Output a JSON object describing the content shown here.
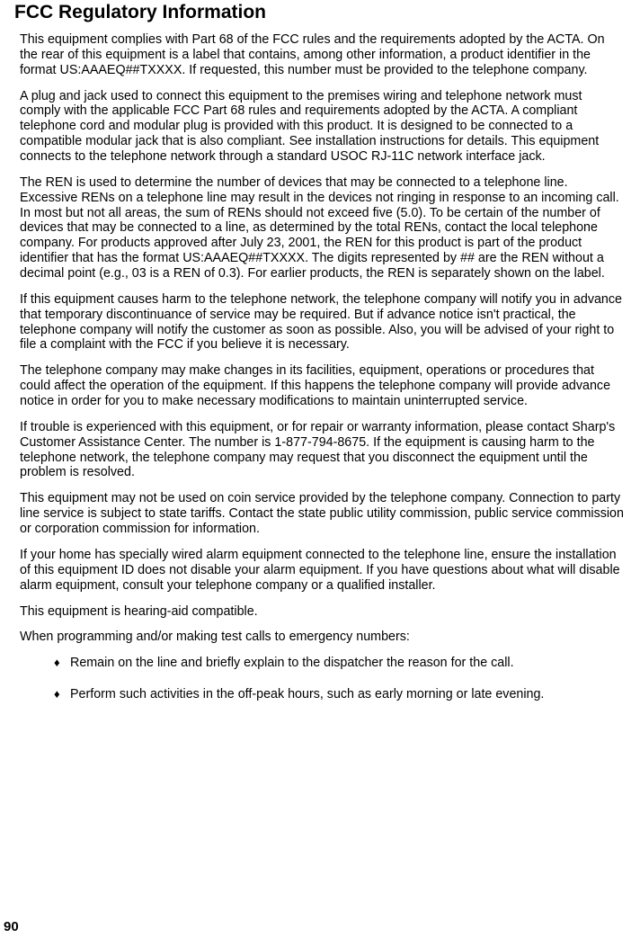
{
  "title": "FCC Regulatory Information",
  "paragraphs": [
    "This equipment complies with Part 68 of the FCC rules and the requirements adopted by the ACTA.  On the rear of this equipment is a label that contains, among other information, a product identifier in the format US:AAAEQ##TXXXX.  If requested, this number must be provided to the telephone company.",
    "A plug and jack used to connect this equipment to the premises wiring and telephone network must comply with the applicable FCC Part 68 rules and requirements adopted by the ACTA.  A compliant telephone cord and modular plug is provided with this product.  It is designed to be connected to a compatible modular jack that is also compliant.  See installation instructions for details. This equipment connects to the telephone network through a standard USOC RJ-11C network interface jack.",
    "The REN is used to determine the number of devices that may be connected to a telephone line. Excessive RENs on a telephone line may result in the devices not ringing in response to an incoming call. In most but not all areas, the sum of RENs should not exceed five (5.0).  To be certain of the number of devices that may be connected to a line, as determined by the total RENs, contact the local telephone company.  For products approved after July 23, 2001, the REN for this product is part of the product identifier that has the format US:AAAEQ##TXXXX.  The digits represented by ## are the REN without a decimal point (e.g., 03 is a REN of 0.3).  For earlier products, the REN is separately shown on the label.",
    "If this equipment causes harm to the telephone network, the telephone company will notify you in advance that temporary discontinuance of service may be required.  But if advance notice isn't practical, the telephone company will notify the customer as soon as possible.  Also, you will be advised of your right to file a complaint with the FCC if you believe it is necessary.",
    "The telephone company may make changes in its facilities, equipment, operations or procedures that could affect the operation of the equipment. If this happens the telephone company will provide advance notice in order for you to make necessary modifications to maintain uninterrupted service.",
    "If trouble is experienced with this equipment, or for repair or warranty information, please contact Sharp's Customer Assistance Center. The number is 1-877-794-8675. If the equipment is causing harm to the telephone network, the telephone company may request that you disconnect the equipment until the problem is resolved.",
    "This equipment may not be used on coin service provided by the telephone company.  Connection to party line service is subject to state tariffs.  Contact the state public utility commission, public service commission or corporation commission for information.",
    "If your home has specially wired alarm equipment connected to the telephone line, ensure the installation of this equipment ID does not disable your alarm equipment.  If you have questions about what will disable alarm equipment, consult your telephone company or a qualified installer.",
    "This equipment is hearing-aid compatible.",
    "When programming and/or making test calls to emergency numbers:"
  ],
  "bullets": [
    "Remain on the line and briefly explain to the dispatcher the reason for the call.",
    "Perform such activities in the off-peak hours, such as early morning or late evening."
  ],
  "page_number": "90",
  "style": {
    "background_color": "#ffffff",
    "text_color": "#000000",
    "title_fontsize": 21,
    "body_fontsize": 14.3,
    "font_family": "Arial, Helvetica, sans-serif"
  }
}
